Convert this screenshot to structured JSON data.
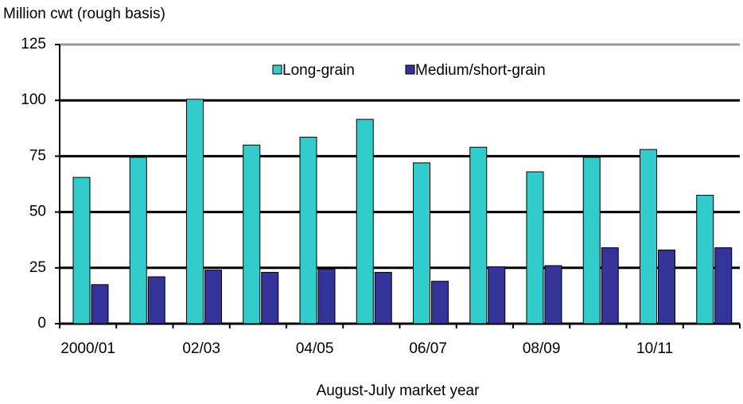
{
  "chart_data": {
    "type": "bar",
    "y_axis_label": "Million cwt (rough basis)",
    "x_axis_label": "August-July market year",
    "categories": [
      "2000/01",
      null,
      "02/03",
      null,
      "04/05",
      null,
      "06/07",
      null,
      "08/09",
      null,
      "10/11",
      null
    ],
    "series": [
      {
        "name": "Long-grain",
        "color": "#33cccc",
        "values": [
          65.5,
          74.5,
          100.5,
          80,
          83.5,
          91.5,
          72,
          79,
          68,
          74.5,
          78,
          57.5
        ]
      },
      {
        "name": "Medium/short-grain",
        "color": "#333399",
        "values": [
          17.5,
          21,
          24,
          23,
          24.5,
          23,
          19,
          25.5,
          26,
          34,
          33,
          34
        ]
      }
    ],
    "ylim": [
      0,
      125
    ],
    "yticks": [
      0,
      25,
      50,
      75,
      100,
      125
    ],
    "grid": true,
    "legend_position": "top"
  }
}
